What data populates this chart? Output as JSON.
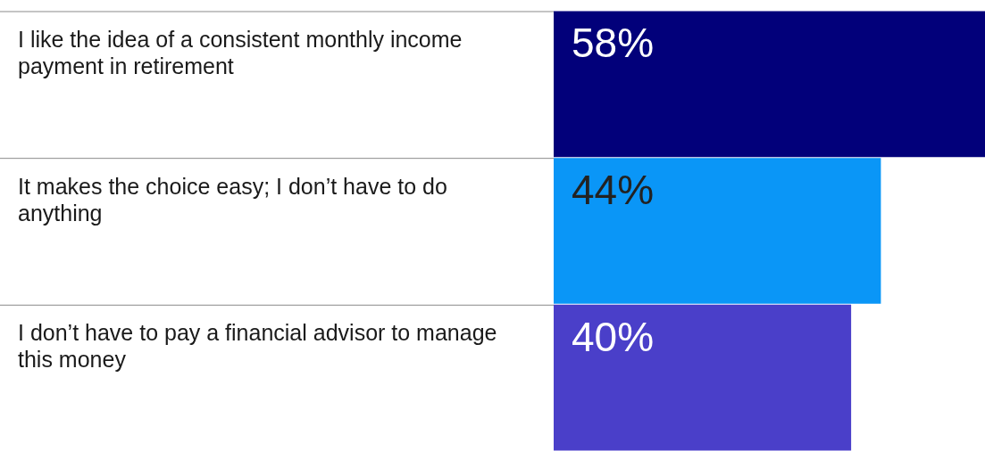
{
  "chart_data": {
    "type": "bar",
    "orientation": "horizontal",
    "categories": [
      "I like the idea of a consistent monthly income payment in retirement",
      "It makes the choice easy; I don’t have to do anything",
      "I don’t have to pay a financial advisor to manage this money"
    ],
    "values": [
      58,
      44,
      40
    ],
    "colors": [
      "#02007a",
      "#0a96f7",
      "#4a3fc9"
    ],
    "value_labels": [
      "58%",
      "44%",
      "40%"
    ],
    "legend": false
  }
}
